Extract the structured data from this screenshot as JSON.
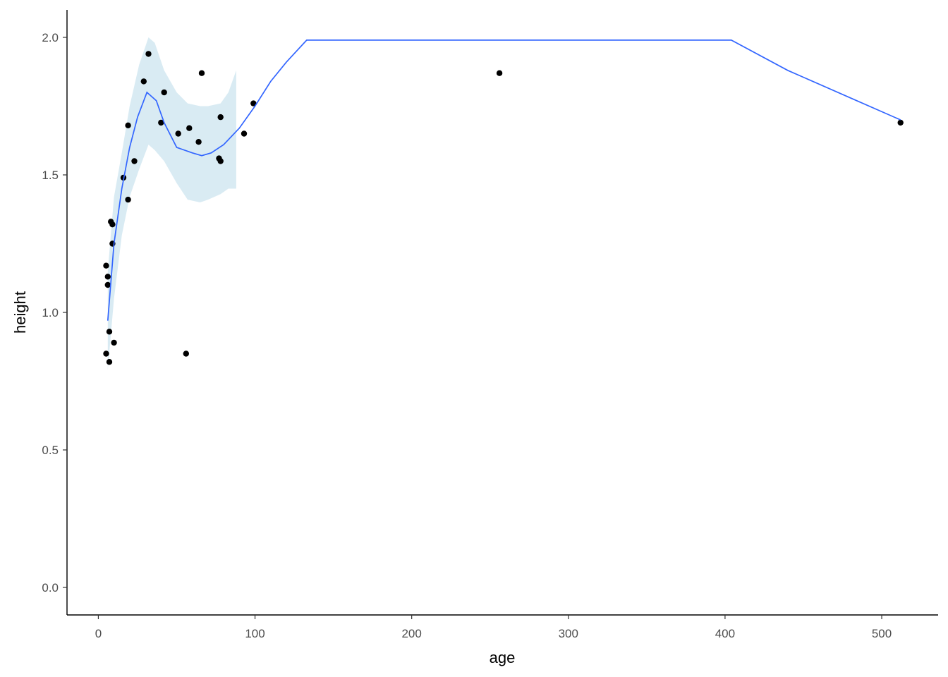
{
  "chart_data": {
    "type": "scatter",
    "title": "",
    "xlabel": "age",
    "ylabel": "height",
    "xlim": [
      -20,
      536
    ],
    "ylim": [
      -0.1,
      2.1
    ],
    "x_ticks": [
      0,
      100,
      200,
      300,
      400,
      500
    ],
    "y_ticks": [
      0.0,
      0.5,
      1.0,
      1.5,
      2.0
    ],
    "x_tick_labels": [
      "0",
      "100",
      "200",
      "300",
      "400",
      "500"
    ],
    "y_tick_labels": [
      "0.0",
      "0.5",
      "1.0",
      "1.5",
      "2.0"
    ],
    "grid": false,
    "legend": "none",
    "colors": {
      "points": "#000000",
      "smooth_line": "#3366ff",
      "confidence_band": "#cfe6f0",
      "axis": "#000000"
    },
    "points": [
      {
        "x": 5,
        "y": 0.85
      },
      {
        "x": 5,
        "y": 1.17
      },
      {
        "x": 6,
        "y": 1.13
      },
      {
        "x": 6,
        "y": 1.1
      },
      {
        "x": 7,
        "y": 0.93
      },
      {
        "x": 7,
        "y": 0.82
      },
      {
        "x": 8,
        "y": 1.33
      },
      {
        "x": 9,
        "y": 1.32
      },
      {
        "x": 9,
        "y": 1.25
      },
      {
        "x": 10,
        "y": 0.89
      },
      {
        "x": 16,
        "y": 1.49
      },
      {
        "x": 19,
        "y": 1.68
      },
      {
        "x": 19,
        "y": 1.41
      },
      {
        "x": 23,
        "y": 1.55
      },
      {
        "x": 29,
        "y": 1.84
      },
      {
        "x": 32,
        "y": 1.94
      },
      {
        "x": 40,
        "y": 1.69
      },
      {
        "x": 42,
        "y": 1.8
      },
      {
        "x": 51,
        "y": 1.65
      },
      {
        "x": 56,
        "y": 0.85
      },
      {
        "x": 58,
        "y": 1.67
      },
      {
        "x": 64,
        "y": 1.62
      },
      {
        "x": 66,
        "y": 1.87
      },
      {
        "x": 77,
        "y": 1.56
      },
      {
        "x": 78,
        "y": 1.55
      },
      {
        "x": 78,
        "y": 1.71
      },
      {
        "x": 93,
        "y": 1.65
      },
      {
        "x": 99,
        "y": 1.76
      },
      {
        "x": 256,
        "y": 1.87
      },
      {
        "x": 512,
        "y": 1.69
      }
    ],
    "smooth_line": [
      {
        "x": 6,
        "y": 0.97
      },
      {
        "x": 10,
        "y": 1.25
      },
      {
        "x": 15,
        "y": 1.45
      },
      {
        "x": 20,
        "y": 1.6
      },
      {
        "x": 25,
        "y": 1.71
      },
      {
        "x": 31,
        "y": 1.8
      },
      {
        "x": 37,
        "y": 1.77
      },
      {
        "x": 42,
        "y": 1.69
      },
      {
        "x": 50,
        "y": 1.6
      },
      {
        "x": 60,
        "y": 1.58
      },
      {
        "x": 66,
        "y": 1.57
      },
      {
        "x": 72,
        "y": 1.58
      },
      {
        "x": 80,
        "y": 1.61
      },
      {
        "x": 90,
        "y": 1.67
      },
      {
        "x": 100,
        "y": 1.75
      },
      {
        "x": 110,
        "y": 1.84
      },
      {
        "x": 120,
        "y": 1.91
      },
      {
        "x": 133,
        "y": 1.99
      },
      {
        "x": 400,
        "y": 1.99
      },
      {
        "x": 404,
        "y": 1.99
      },
      {
        "x": 440,
        "y": 1.88
      },
      {
        "x": 480,
        "y": 1.78
      },
      {
        "x": 512,
        "y": 1.7
      }
    ],
    "confidence_band": [
      {
        "x": 6,
        "lower": 0.79,
        "upper": 1.15
      },
      {
        "x": 10,
        "lower": 1.05,
        "upper": 1.42
      },
      {
        "x": 15,
        "lower": 1.28,
        "upper": 1.58
      },
      {
        "x": 20,
        "lower": 1.42,
        "upper": 1.75
      },
      {
        "x": 26,
        "lower": 1.52,
        "upper": 1.9
      },
      {
        "x": 32,
        "lower": 1.61,
        "upper": 2.0
      },
      {
        "x": 36,
        "lower": 1.59,
        "upper": 1.98
      },
      {
        "x": 42,
        "lower": 1.55,
        "upper": 1.88
      },
      {
        "x": 50,
        "lower": 1.47,
        "upper": 1.8
      },
      {
        "x": 57,
        "lower": 1.41,
        "upper": 1.76
      },
      {
        "x": 65,
        "lower": 1.4,
        "upper": 1.75
      },
      {
        "x": 70,
        "lower": 1.41,
        "upper": 1.75
      },
      {
        "x": 78,
        "lower": 1.43,
        "upper": 1.76
      },
      {
        "x": 83,
        "lower": 1.45,
        "upper": 1.8
      },
      {
        "x": 88,
        "lower": 1.45,
        "upper": 1.88
      }
    ]
  }
}
